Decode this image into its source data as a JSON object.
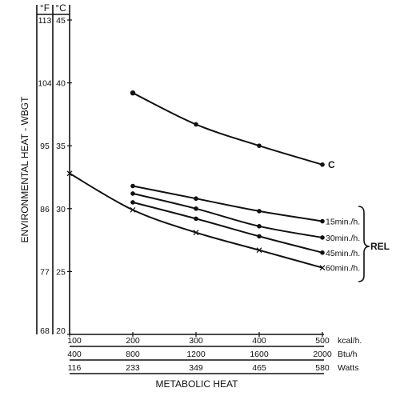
{
  "chart_data": {
    "type": "line",
    "ylabel": "ENVIRONMENTAL HEAT - WBGT",
    "xlabel": "METABOLIC HEAT",
    "y_units": {
      "f": "°F",
      "c": "°C"
    },
    "y_ticks_c": [
      "20",
      "25",
      "30",
      "35",
      "40",
      "45"
    ],
    "y_ticks_f": [
      "68",
      "77",
      "86",
      "95",
      "104",
      "113"
    ],
    "ylim_c": [
      20,
      45
    ],
    "x_scales": [
      {
        "ticks": [
          "100",
          "200",
          "300",
          "400",
          "500"
        ],
        "unit": "kcal/h."
      },
      {
        "ticks": [
          "400",
          "800",
          "1200",
          "1600",
          "2000"
        ],
        "unit": "Btu/h"
      },
      {
        "ticks": [
          "116",
          "233",
          "349",
          "465",
          "580"
        ],
        "unit": "Watts"
      }
    ],
    "xlim_kcal": [
      100,
      500
    ],
    "series": [
      {
        "name": "C",
        "marker": "dot",
        "points": [
          [
            200,
            39.2
          ],
          [
            300,
            36.7
          ],
          [
            400,
            35.0
          ],
          [
            500,
            33.5
          ]
        ]
      },
      {
        "name": "15min./h.",
        "marker": "dot",
        "points": [
          [
            200,
            31.8
          ],
          [
            300,
            30.8
          ],
          [
            400,
            29.8
          ],
          [
            500,
            29.0
          ]
        ]
      },
      {
        "name": "30min./h.",
        "marker": "dot",
        "points": [
          [
            200,
            31.2
          ],
          [
            300,
            30.0
          ],
          [
            400,
            28.6
          ],
          [
            500,
            27.7
          ]
        ]
      },
      {
        "name": "45min./h.",
        "marker": "dot",
        "points": [
          [
            200,
            30.5
          ],
          [
            300,
            29.2
          ],
          [
            400,
            27.8
          ],
          [
            500,
            26.5
          ]
        ]
      },
      {
        "name": "60min./h.",
        "marker": "x",
        "points": [
          [
            100,
            32.8
          ],
          [
            200,
            29.9
          ],
          [
            300,
            28.1
          ],
          [
            400,
            26.7
          ],
          [
            500,
            25.3
          ]
        ]
      }
    ],
    "group_label": "REL",
    "legend": "right"
  }
}
